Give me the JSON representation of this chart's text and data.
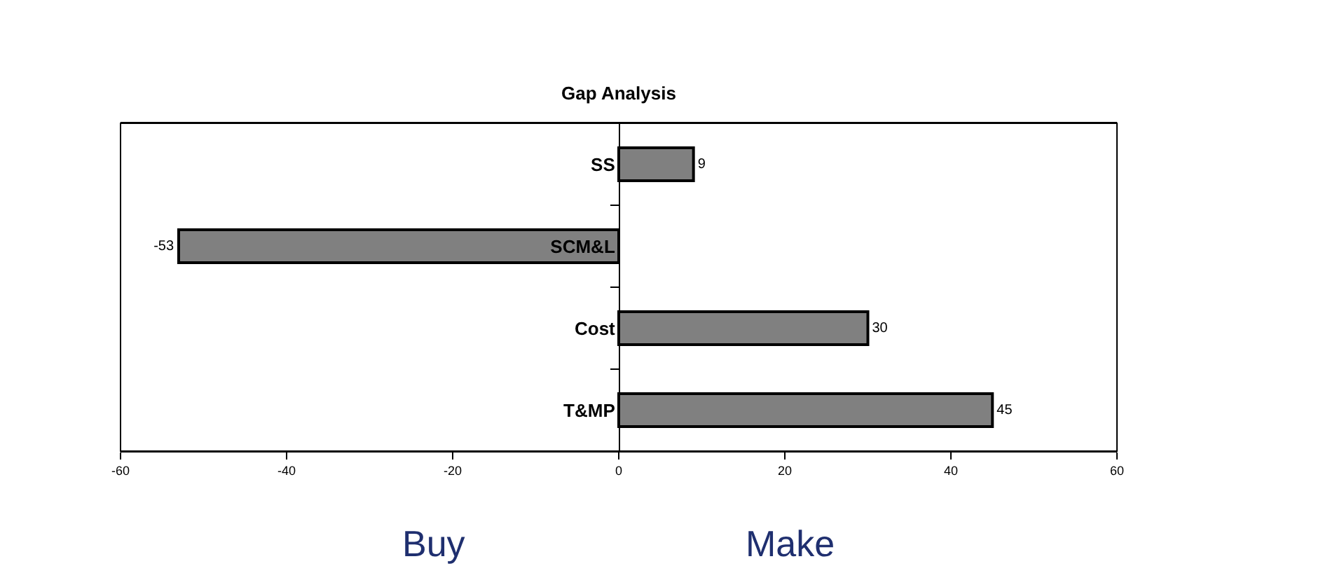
{
  "chart_data": {
    "type": "bar",
    "orientation": "horizontal",
    "title": "Gap Analysis",
    "categories": [
      "SS",
      "SCM&L",
      "Cost",
      "T&MP"
    ],
    "values": [
      9,
      -53,
      30,
      45
    ],
    "color": "#808080",
    "data_labels": true,
    "xlim": [
      -60,
      60
    ],
    "xticks": [
      -60,
      -40,
      -20,
      0,
      20,
      40,
      60
    ],
    "annotations": [
      "Buy",
      "Make"
    ]
  }
}
